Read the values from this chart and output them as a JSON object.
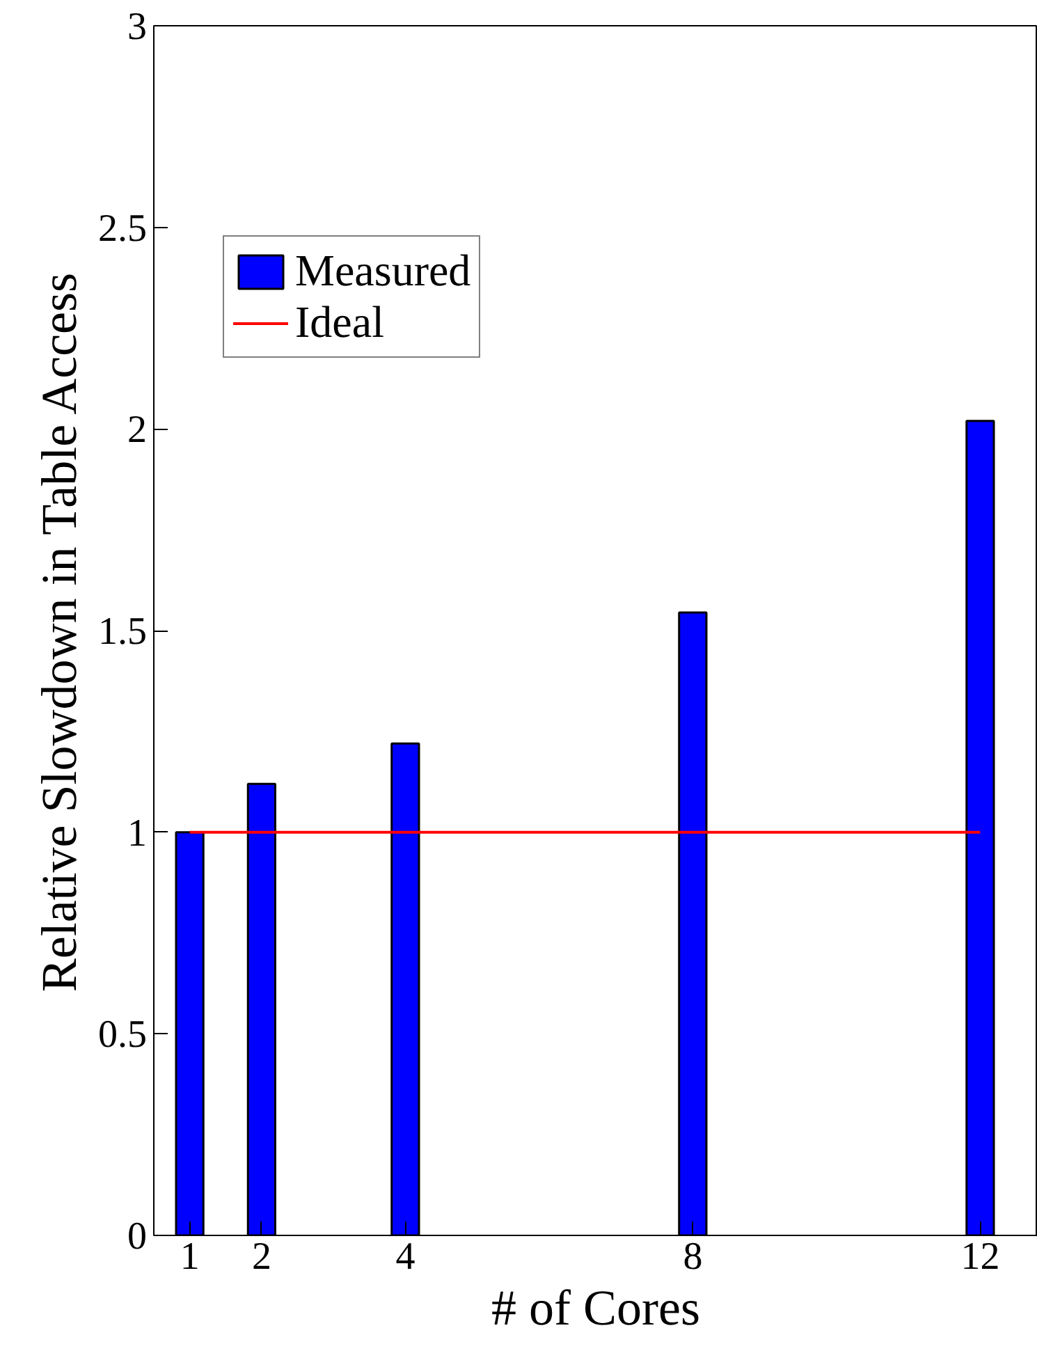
{
  "chart_data": {
    "type": "bar",
    "xlabel": "# of Cores",
    "ylabel": "Relative Slowdown in Table Access",
    "x": [
      1,
      2,
      4,
      8,
      12
    ],
    "series": [
      {
        "name": "Measured",
        "color": "#0000ff",
        "values": [
          1.0,
          1.12,
          1.22,
          1.545,
          2.02
        ]
      },
      {
        "name": "Ideal",
        "type": "line",
        "color": "#ff0000",
        "x": [
          1,
          12
        ],
        "values": [
          1,
          1
        ]
      }
    ],
    "xlim": [
      0.5,
      12.8
    ],
    "ylim": [
      0,
      3
    ],
    "xticks": [
      1,
      2,
      4,
      8,
      12
    ],
    "yticks": [
      0,
      0.5,
      1,
      1.5,
      2,
      2.5,
      3
    ],
    "grid": false,
    "legend": "top left"
  }
}
